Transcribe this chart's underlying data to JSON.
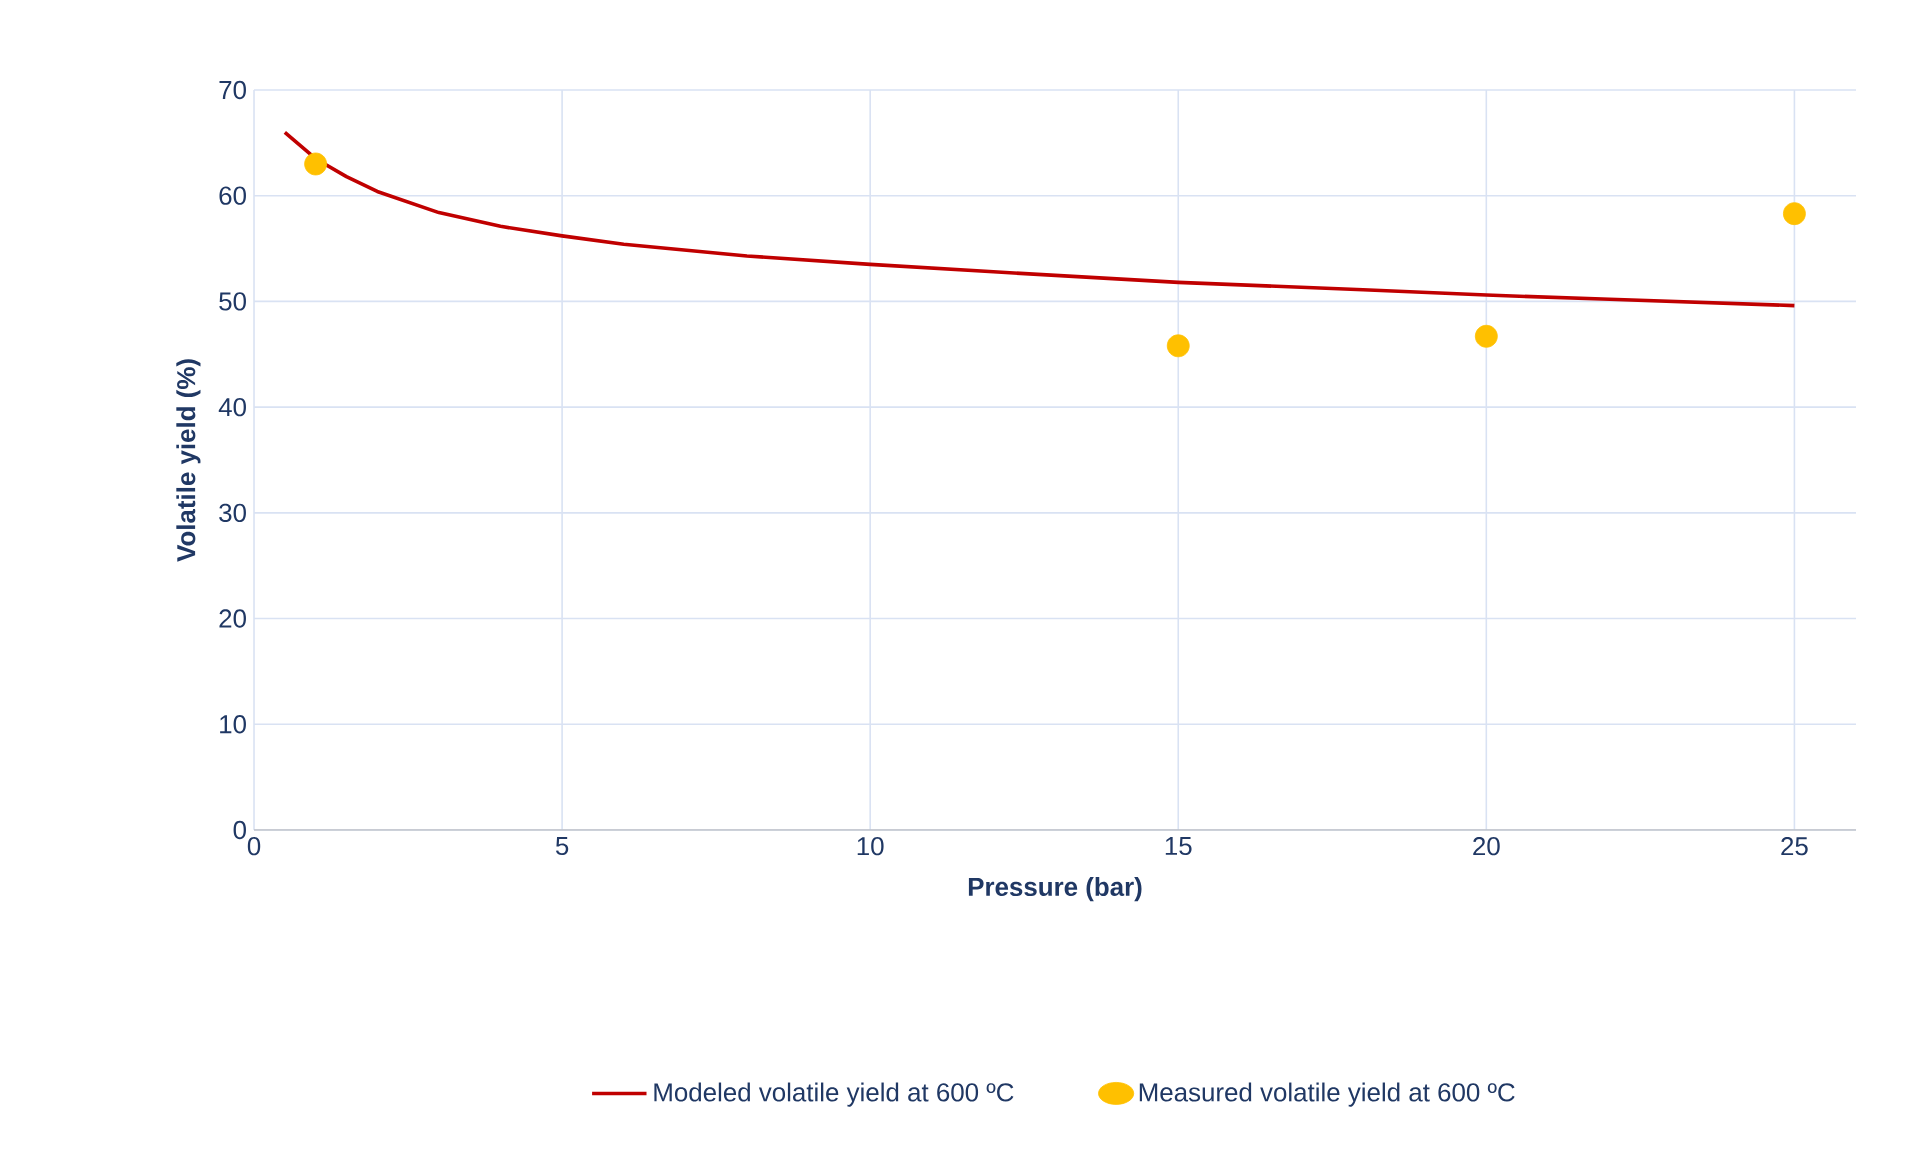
{
  "chart_data": {
    "type": "line",
    "xlabel": "Pressure (bar)",
    "ylabel": "Volatile yield (%)",
    "xlim": [
      0,
      26
    ],
    "xticks": [
      0,
      5,
      10,
      15,
      20,
      25
    ],
    "ylim": [
      0,
      70
    ],
    "yticks": [
      0,
      10,
      20,
      30,
      40,
      50,
      60,
      70
    ],
    "grid": true,
    "legend": "bottom",
    "series": [
      {
        "name": "Modeled volatile yield at 600 ºC",
        "color": "#c00000",
        "marker": "none",
        "line_style": "solid",
        "x": [
          0.5,
          1,
          1.5,
          2,
          3,
          4,
          5,
          6,
          8,
          10,
          12,
          15,
          18,
          20,
          22,
          25
        ],
        "values": [
          66,
          63.5,
          61.8,
          60.4,
          58.4,
          57.1,
          56.2,
          55.4,
          54.3,
          53.5,
          52.8,
          51.8,
          51.1,
          50.6,
          50.2,
          49.6
        ]
      },
      {
        "name": "Measured volatile yield at 600 ºC",
        "type": "scatter",
        "color": "#ffc000",
        "marker": "circle",
        "x": [
          1,
          15,
          20,
          25
        ],
        "values": [
          63,
          45.8,
          46.7,
          58.3
        ]
      }
    ]
  }
}
